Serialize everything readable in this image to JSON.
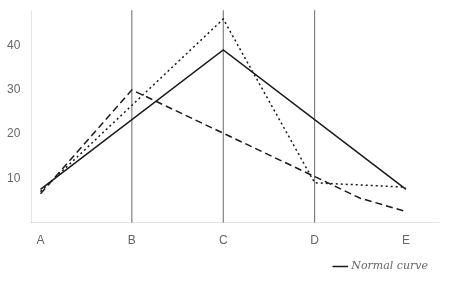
{
  "chart_data": {
    "type": "line",
    "xticks": [
      {
        "value": 0,
        "label": "A"
      },
      {
        "value": 1,
        "label": "B"
      },
      {
        "value": 2,
        "label": "C"
      },
      {
        "value": 3,
        "label": "D"
      },
      {
        "value": 4,
        "label": "E"
      }
    ],
    "xlim": [
      -0.1,
      4.35
    ],
    "ylim": [
      0,
      48
    ],
    "yticks": [
      10,
      20,
      30,
      40
    ],
    "grid": false,
    "legend": "bottom",
    "vlines": [
      1,
      2,
      3
    ],
    "series": [
      {
        "name": "Normal curve",
        "color": "#1a1a1a",
        "line_style": "solid",
        "x": [
          0,
          2,
          4
        ],
        "values": [
          7.5,
          39,
          7.5
        ]
      },
      {
        "color": "#1a1a1a",
        "line_style": "dashed",
        "x": [
          0,
          1,
          3.5,
          4
        ],
        "values": [
          6.5,
          30,
          5.5,
          2.5
        ]
      },
      {
        "color": "#1a1a1a",
        "line_style": "dotted",
        "x": [
          0,
          2,
          3,
          4
        ],
        "values": [
          7,
          46,
          9,
          8
        ]
      }
    ]
  }
}
